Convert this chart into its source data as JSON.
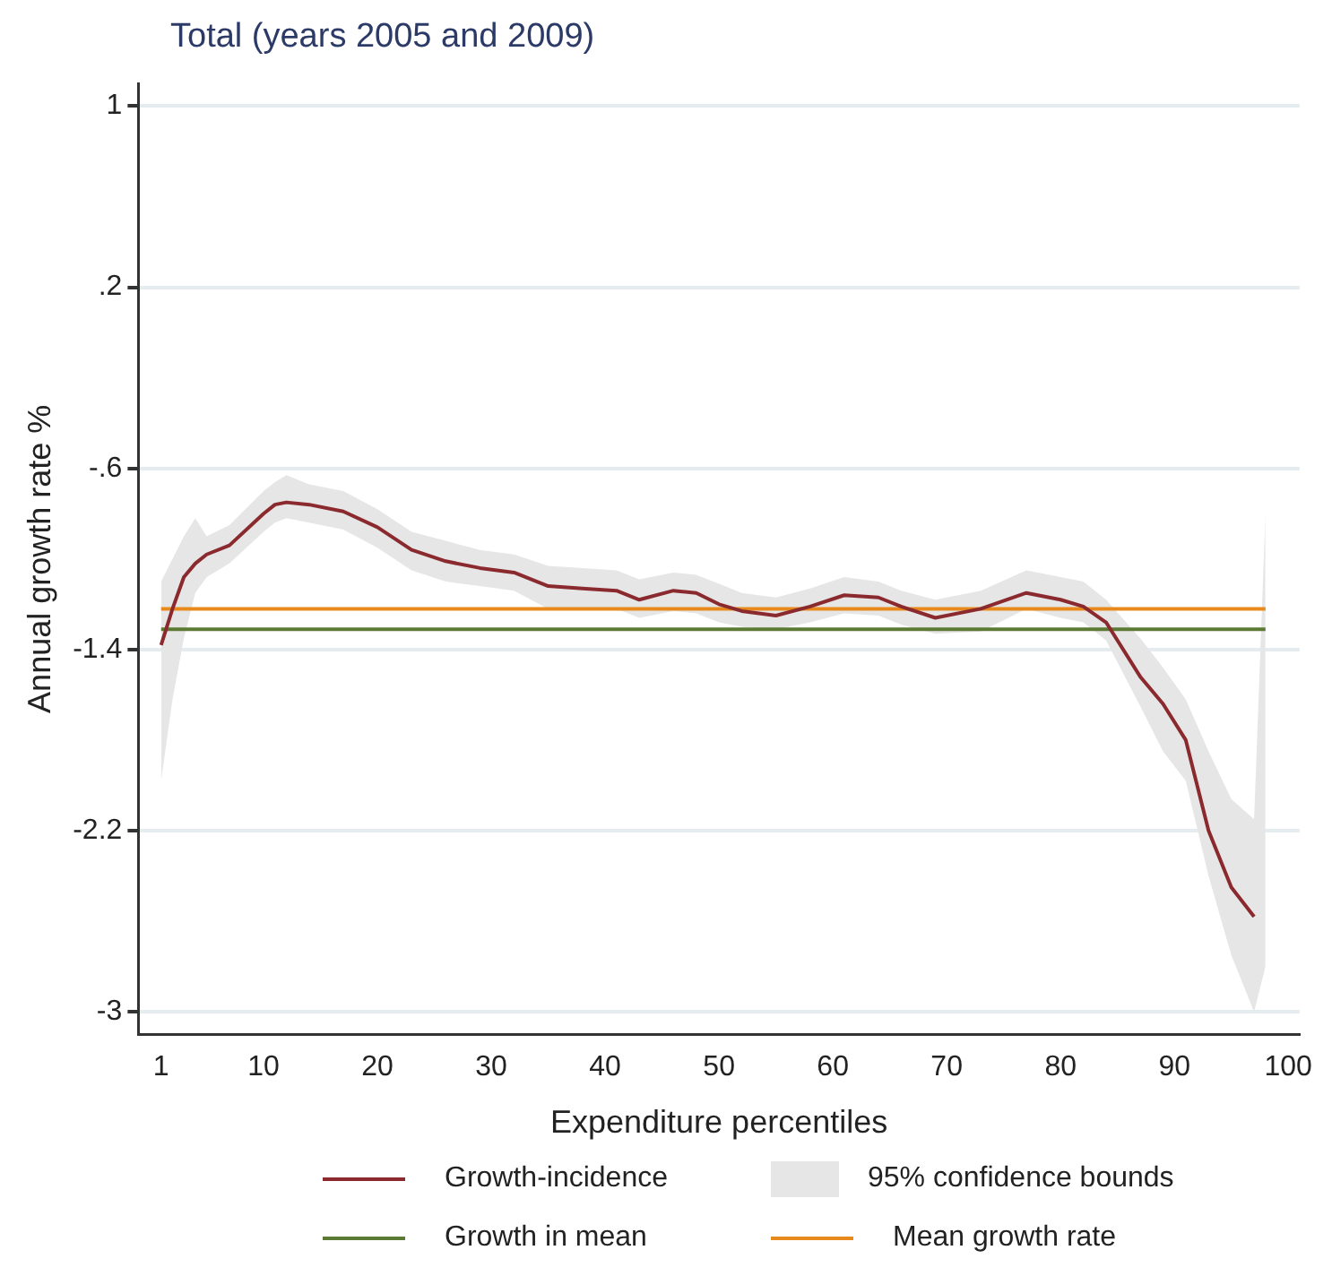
{
  "chart_data": {
    "type": "line",
    "title": "Total (years 2005 and 2009)",
    "xlabel": "Expenditure percentiles",
    "ylabel": "Annual growth rate %",
    "xlim": [
      -1,
      101
    ],
    "xticks": [
      1,
      10,
      20,
      30,
      40,
      50,
      60,
      70,
      80,
      90,
      100
    ],
    "ylim": [
      -3.1,
      1.1
    ],
    "yticks": [
      {
        "value": -3,
        "label": "-3"
      },
      {
        "value": -2.2,
        "label": "-2.2"
      },
      {
        "value": -1.4,
        "label": "-1.4"
      },
      {
        "value": -0.6,
        "label": "-.6"
      },
      {
        "value": 0.2,
        "label": ".2"
      },
      {
        "value": 1,
        "label": "1"
      }
    ],
    "grid": "y",
    "legend": "bottom",
    "marker": "none",
    "line_style": "solid",
    "annotations": [
      "95% confidence bounds"
    ],
    "series": [
      {
        "name": "Growth-incidence",
        "color": "#8b2a2e",
        "x": [
          1,
          2,
          3,
          4,
          5,
          7,
          10,
          11,
          12,
          14,
          17,
          20,
          23,
          26,
          29,
          32,
          35,
          38,
          41,
          43,
          46,
          48,
          50,
          52,
          55,
          58,
          61,
          64,
          66,
          69,
          73,
          77,
          80,
          82,
          84,
          87,
          89,
          91,
          93,
          95,
          97,
          98
        ],
        "values": [
          -1.38,
          -1.22,
          -1.08,
          -1.02,
          -0.98,
          -0.94,
          -0.8,
          -0.76,
          -0.75,
          -0.76,
          -0.79,
          -0.86,
          -0.96,
          -1.01,
          -1.04,
          -1.06,
          -1.12,
          -1.13,
          -1.14,
          -1.18,
          -1.14,
          -1.15,
          -1.2,
          -1.23,
          -1.25,
          -1.21,
          -1.16,
          -1.17,
          -1.21,
          -1.26,
          -1.22,
          -1.15,
          -1.18,
          -1.21,
          -1.28,
          -1.52,
          -1.64,
          -1.8,
          -2.2,
          -2.45,
          -2.58,
          null
        ],
        "lower": [
          -1.98,
          -1.62,
          -1.35,
          -1.15,
          -1.08,
          -1.02,
          -0.88,
          -0.84,
          -0.82,
          -0.84,
          -0.87,
          -0.95,
          -1.05,
          -1.1,
          -1.12,
          -1.14,
          -1.22,
          -1.22,
          -1.22,
          -1.26,
          -1.23,
          -1.24,
          -1.28,
          -1.3,
          -1.31,
          -1.28,
          -1.24,
          -1.25,
          -1.29,
          -1.33,
          -1.32,
          -1.22,
          -1.26,
          -1.28,
          -1.36,
          -1.65,
          -1.85,
          -1.98,
          -2.4,
          -2.75,
          -3.0,
          -2.8
        ],
        "upper": [
          -1.1,
          -1.0,
          -0.9,
          -0.82,
          -0.9,
          -0.85,
          -0.7,
          -0.66,
          -0.63,
          -0.67,
          -0.7,
          -0.78,
          -0.88,
          -0.92,
          -0.96,
          -0.98,
          -1.03,
          -1.04,
          -1.05,
          -1.09,
          -1.06,
          -1.07,
          -1.11,
          -1.15,
          -1.17,
          -1.13,
          -1.08,
          -1.1,
          -1.14,
          -1.18,
          -1.14,
          -1.05,
          -1.08,
          -1.1,
          -1.18,
          -1.35,
          -1.48,
          -1.62,
          -1.85,
          -2.06,
          -2.15,
          -0.8
        ]
      }
    ],
    "ref_lines": [
      {
        "axis": "y",
        "value": -1.31,
        "label": "Growth in mean",
        "color": "#5b7a34"
      },
      {
        "axis": "y",
        "value": -1.22,
        "label": "Mean growth rate",
        "color": "#e8891c"
      }
    ]
  }
}
